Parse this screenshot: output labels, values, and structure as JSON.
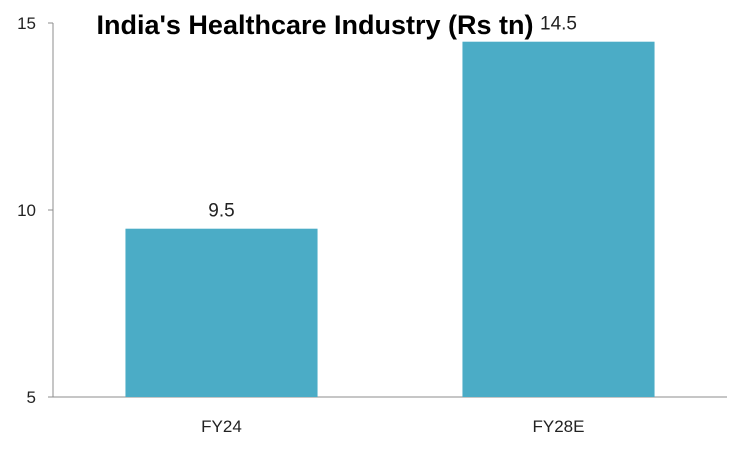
{
  "chart_data": {
    "type": "bar",
    "title": "India's Healthcare Industry (Rs tn)",
    "categories": [
      "FY24",
      "FY28E"
    ],
    "values": [
      9.5,
      14.5
    ],
    "data_labels": [
      "9.5",
      "14.5"
    ],
    "ylim": [
      5,
      15
    ],
    "yticks": [
      5,
      10,
      15
    ],
    "xlabel": "",
    "ylabel": "",
    "grid": false,
    "legend": "none",
    "bar_color": "#4bacc6"
  }
}
